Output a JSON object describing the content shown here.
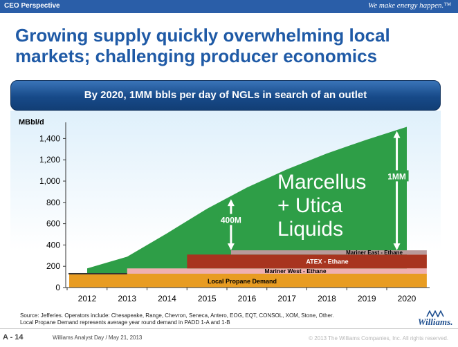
{
  "header": {
    "section": "CEO Perspective",
    "tagline": "We make energy happen.™"
  },
  "slide_title": "Growing supply quickly overwhelming local markets; challenging producer economics",
  "banner": "By 2020, 1MM bbls per day of NGLs in search of an outlet",
  "chart_data": {
    "type": "area",
    "ylabel": "MBbl/d",
    "ylim": [
      0,
      1500
    ],
    "yticks": [
      0,
      200,
      400,
      600,
      800,
      1000,
      1200,
      1400
    ],
    "x": [
      "2012",
      "2013",
      "2014",
      "2015",
      "2016",
      "2017",
      "2018",
      "2019",
      "2020"
    ],
    "series": [
      {
        "name": "Marcellus + Utica Liquids",
        "color": "#2e9e47",
        "values": [
          180,
          290,
          510,
          740,
          940,
          1110,
          1260,
          1390,
          1510
        ]
      }
    ],
    "capacity_bands": [
      {
        "name": "Local Propane Demand",
        "color": "#e89c22",
        "start": 2011.55,
        "end": 2020.5,
        "low": 0,
        "high": 130
      },
      {
        "name": "Mariner West - Ethane",
        "color": "#f0b0b0",
        "start": 2013.0,
        "end": 2020.5,
        "low": 130,
        "high": 180
      },
      {
        "name": "ATEX - Ethane",
        "color": "#a8341f",
        "start": 2014.5,
        "end": 2020.5,
        "low": 180,
        "high": 310
      },
      {
        "name": "Mariner East - Ethane",
        "color": "#b99a9a",
        "start": 2015.6,
        "end": 2020.5,
        "low": 310,
        "high": 350
      }
    ],
    "annotations": [
      {
        "text": "400M",
        "x": 2015.6,
        "from": 350,
        "to": 830
      },
      {
        "text": "1MM",
        "x": 2019.75,
        "from": 350,
        "to": 1470
      }
    ]
  },
  "chart_labels": {
    "area_label_line1": "Marcellus",
    "area_label_line2": "+ Utica",
    "area_label_line3": "Liquids"
  },
  "source_lines": [
    "Source: Jefferies. Operators include: Chesapeake, Range, Chevron, Seneca, Antero, EOG, EQT, CONSOL, XOM, Stone, Other.",
    "Local Propane Demand represents average year round demand in PADD 1-A and 1-B"
  ],
  "footer": {
    "page": "A - 14",
    "event": "Williams Analyst Day / May 21, 2013",
    "copyright": "© 2013 The Williams Companies, Inc. All rights reserved.",
    "logo": "Williams."
  }
}
